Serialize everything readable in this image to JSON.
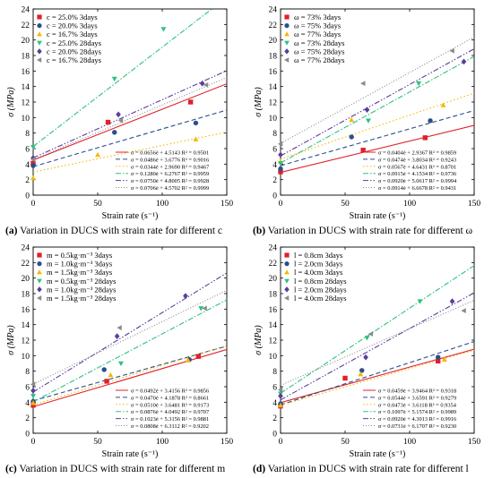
{
  "chart_data": [
    {
      "type": "scatter",
      "panel_label": "(a)",
      "caption_text": "Variation in DUCS with strain rate for different c",
      "xlabel": "Strain rate (s⁻¹)",
      "ylabel": "σ (MPa)",
      "xlim": [
        0,
        150
      ],
      "ylim": [
        0,
        24
      ],
      "x_ticks": [
        "0",
        "50",
        "100",
        "150"
      ],
      "y_ticks": [
        "0",
        "2",
        "4",
        "6",
        "8",
        "10",
        "12",
        "14",
        "16",
        "18",
        "20",
        "22",
        "24"
      ],
      "legend_position": "top-left",
      "series": [
        {
          "name": "c = 25.0%  3days",
          "color": "#e0202a",
          "marker": "square",
          "line": "solid",
          "points": [
            [
              0,
              4.1
            ],
            [
              58,
              9.4
            ],
            [
              122,
              12.0
            ]
          ],
          "fit": [
            0.0656,
            4.5143
          ],
          "fit_label": "σ = 0.0656ė + 4.5143  R² = 0.9501"
        },
        {
          "name": "c = 20.0%  3days",
          "color": "#2a4f8c",
          "marker": "circle",
          "line": "dash",
          "points": [
            [
              0,
              3.8
            ],
            [
              63,
              8.1
            ],
            [
              126,
              9.3
            ]
          ],
          "fit": [
            0.0486,
            3.6776
          ],
          "fit_label": "σ = 0.0486ė + 3.6776  R² = 0.9016"
        },
        {
          "name": "c = 16.7%  3days",
          "color": "#f5b800",
          "marker": "triangle-up",
          "line": "dot",
          "points": [
            [
              0,
              2.2
            ],
            [
              50,
              5.2
            ],
            [
              126,
              7.2
            ]
          ],
          "fit": [
            0.0344,
            2.969
          ],
          "fit_label": "σ = 0.0344ė + 2.9690  R² = 0.9467"
        },
        {
          "name": "c = 25.0%  28days",
          "color": "#2ec27e",
          "marker": "triangle-down",
          "line": "dashdot",
          "points": [
            [
              0,
              6.2
            ],
            [
              63,
              15.0
            ],
            [
              101,
              21.4
            ]
          ],
          "fit": [
            0.128,
            6.2767
          ],
          "fit_label": "σ = 0.1280ė + 6.2767  R² = 0.9959"
        },
        {
          "name": "c = 20.0%  28days",
          "color": "#5a3d9a",
          "marker": "diamond",
          "line": "dashdotdot",
          "points": [
            [
              0,
              4.8
            ],
            [
              66,
              10.4
            ],
            [
              131,
              14.4
            ]
          ],
          "fit": [
            0.075,
            4.8005
          ],
          "fit_label": "σ = 0.0750ė + 4.8005  R² = 0.9928"
        },
        {
          "name": "c = 16.7%  28days",
          "color": "#8a8a8a",
          "marker": "triangle-left",
          "line": "shortdot",
          "points": [
            [
              0,
              4.6
            ],
            [
              68,
              9.6
            ],
            [
              134,
              14.2
            ]
          ],
          "fit": [
            0.0706,
            4.5702
          ],
          "fit_label": "σ = 0.0706ė + 4.5702  R² = 0.9999"
        }
      ]
    },
    {
      "type": "scatter",
      "panel_label": "(b)",
      "caption_text": "Variation in DUCS with strain rate for different ω",
      "xlabel": "Strain rate (s⁻¹)",
      "ylabel": "σ (MPa)",
      "xlim": [
        0,
        150
      ],
      "ylim": [
        0,
        24
      ],
      "x_ticks": [
        "0",
        "50",
        "100",
        "150"
      ],
      "y_ticks": [
        "0",
        "2",
        "4",
        "6",
        "8",
        "10",
        "12",
        "14",
        "16",
        "18",
        "20",
        "22",
        "24"
      ],
      "legend_position": "top-left",
      "series": [
        {
          "name": "ω = 73%  3days",
          "color": "#e0202a",
          "marker": "square",
          "line": "solid",
          "points": [
            [
              0,
              3.0
            ],
            [
              64,
              5.8
            ],
            [
              112,
              7.4
            ]
          ],
          "fit": [
            0.0404,
            2.9367
          ],
          "fit_label": "σ = 0.0404ė + 2.9367  R² = 0.9859"
        },
        {
          "name": "ω = 75%  3days",
          "color": "#2a4f8c",
          "marker": "circle",
          "line": "dash",
          "points": [
            [
              0,
              3.4
            ],
            [
              55,
              7.5
            ],
            [
              116,
              9.6
            ]
          ],
          "fit": [
            0.0474,
            3.8034
          ],
          "fit_label": "σ = 0.0474ė + 3.8034  R² = 0.9243"
        },
        {
          "name": "ω = 77%  3days",
          "color": "#f5b800",
          "marker": "triangle-up",
          "line": "dot",
          "points": [
            [
              0,
              4.3
            ],
            [
              55,
              9.7
            ],
            [
              126,
              11.6
            ]
          ],
          "fit": [
            0.0567,
            4.6431
          ],
          "fit_label": "σ = 0.0567ė + 4.6431  R² = 0.8701"
        },
        {
          "name": "ω = 73%  28days",
          "color": "#2ec27e",
          "marker": "triangle-down",
          "line": "dashdot",
          "points": [
            [
              0,
              4.1
            ],
            [
              68,
              9.6
            ],
            [
              107,
              14.4
            ]
          ],
          "fit": [
            0.0915,
            4.1534
          ],
          "fit_label": "σ = 0.0915ė + 4.1534  R² = 0.9736"
        },
        {
          "name": "ω = 75%  28days",
          "color": "#5a3d9a",
          "marker": "diamond",
          "line": "dashdotdot",
          "points": [
            [
              0,
              5.2
            ],
            [
              67,
              11.0
            ],
            [
              142,
              17.2
            ]
          ],
          "fit": [
            0.092,
            5.0617
          ],
          "fit_label": "σ = 0.0920ė + 5.0617  R² = 0.9994"
        },
        {
          "name": "ω = 77%  28days",
          "color": "#8a8a8a",
          "marker": "triangle-left",
          "line": "shortdot",
          "points": [
            [
              0,
              6.6
            ],
            [
              64,
              14.4
            ],
            [
              133,
              18.6
            ]
          ],
          "fit": [
            0.0914,
            6.6678
          ],
          "fit_label": "σ = 0.0914ė + 6.6678  R² = 0.9431"
        }
      ]
    },
    {
      "type": "scatter",
      "panel_label": "(c)",
      "caption_text": "Variation in DUCS with strain rate for different m",
      "xlabel": "Strain rate (s⁻¹)",
      "ylabel": "σ (MPa)",
      "xlim": [
        0,
        150
      ],
      "ylim": [
        0,
        24
      ],
      "x_ticks": [
        "0",
        "50",
        "100",
        "150"
      ],
      "y_ticks": [
        "0",
        "2",
        "4",
        "6",
        "8",
        "10",
        "12",
        "14",
        "16",
        "18",
        "20",
        "22",
        "24"
      ],
      "legend_position": "top-left",
      "series": [
        {
          "name": "m = 0.5kg·m⁻³  3days",
          "color": "#e0202a",
          "marker": "square",
          "line": "solid",
          "points": [
            [
              0,
              3.6
            ],
            [
              57,
              6.7
            ],
            [
              128,
              9.9
            ]
          ],
          "fit": [
            0.0492,
            3.4156
          ],
          "fit_label": "σ = 0.0492ė + 3.4156  R² = 0.9856"
        },
        {
          "name": "m = 1.0kg·m⁻³  3days",
          "color": "#2a4f8c",
          "marker": "circle",
          "line": "dash",
          "points": [
            [
              0,
              4.1
            ],
            [
              55,
              8.2
            ],
            [
              121,
              9.5
            ]
          ],
          "fit": [
            0.047,
            4.1878
          ],
          "fit_label": "σ = 0.0470ė + 4.1878  R² = 0.8661"
        },
        {
          "name": "m = 1.5kg·m⁻³  3days",
          "color": "#f5b800",
          "marker": "triangle-up",
          "line": "dot",
          "points": [
            [
              0,
              3.9
            ],
            [
              60,
              7.5
            ],
            [
              120,
              9.4
            ]
          ],
          "fit": [
            0.051,
            3.6481
          ],
          "fit_label": "σ = 0.0510ė + 3.6481  R² = 0.9173"
        },
        {
          "name": "m = 0.5kg·m⁻³  28days",
          "color": "#2ec27e",
          "marker": "triangle-down",
          "line": "dashdot",
          "points": [
            [
              0,
              4.8
            ],
            [
              68,
              9.0
            ],
            [
              130,
              16.1
            ]
          ],
          "fit": [
            0.0876,
            4.0492
          ],
          "fit_label": "σ = 0.0876ė + 4.0492  R² = 0.9707"
        },
        {
          "name": "m = 1.0kg·m⁻³  28days",
          "color": "#5a3d9a",
          "marker": "diamond",
          "line": "dashdotdot",
          "points": [
            [
              0,
              5.5
            ],
            [
              65,
              12.5
            ],
            [
              118,
              17.7
            ]
          ],
          "fit": [
            0.1023,
            5.3156
          ],
          "fit_label": "σ = 0.1023ė + 5.3156  R² = 0.9881"
        },
        {
          "name": "m = 1.5kg·m⁻³  28days",
          "color": "#8a8a8a",
          "marker": "triangle-left",
          "line": "shortdot",
          "points": [
            [
              0,
              6.3
            ],
            [
              67,
              13.6
            ],
            [
              133,
              16.1
            ]
          ],
          "fit": [
            0.0808,
            6.3112
          ],
          "fit_label": "σ = 0.0808ė + 6.3112  R² = 0.9202"
        }
      ]
    },
    {
      "type": "scatter",
      "panel_label": "(d)",
      "caption_text": "Variation in DUCS with strain rate for different l",
      "xlabel": "Strain rate (s⁻¹)",
      "ylabel": "σ (MPa)",
      "xlim": [
        0,
        150
      ],
      "ylim": [
        0,
        24
      ],
      "x_ticks": [
        "0",
        "50",
        "100",
        "150"
      ],
      "y_ticks": [
        "0",
        "2",
        "4",
        "6",
        "8",
        "10",
        "12",
        "14",
        "16",
        "18",
        "20",
        "22",
        "24"
      ],
      "legend_position": "top-left",
      "series": [
        {
          "name": "l = 0.8cm  3days",
          "color": "#e0202a",
          "marker": "square",
          "line": "solid",
          "points": [
            [
              0,
              3.5
            ],
            [
              50,
              7.1
            ],
            [
              122,
              9.3
            ]
          ],
          "fit": [
            0.0459,
            3.9464
          ],
          "fit_label": "σ = 0.0459ė + 3.9464  R² = 0.9318"
        },
        {
          "name": "l = 2.0cm  3days",
          "color": "#2a4f8c",
          "marker": "circle",
          "line": "dash",
          "points": [
            [
              0,
              3.8
            ],
            [
              63,
              8.1
            ],
            [
              122,
              9.8
            ]
          ],
          "fit": [
            0.0544,
            3.6591
          ],
          "fit_label": "σ = 0.0544ė + 3.6591  R² = 0.9279"
        },
        {
          "name": "l = 4.0cm  3days",
          "color": "#f5b800",
          "marker": "triangle-up",
          "line": "dot",
          "points": [
            [
              0,
              3.6
            ],
            [
              62,
              7.6
            ],
            [
              127,
              9.5
            ]
          ],
          "fit": [
            0.0473,
            3.6118
          ],
          "fit_label": "σ = 0.0473ė + 3.6118  R² = 0.9354"
        },
        {
          "name": "l = 0.8cm  28days",
          "color": "#2ec27e",
          "marker": "triangle-down",
          "line": "dashdot",
          "points": [
            [
              0,
              5.1
            ],
            [
              67,
              12.3
            ],
            [
              108,
              17.0
            ]
          ],
          "fit": [
            0.1097,
            5.1574
          ],
          "fit_label": "σ = 0.1097ė + 5.1574  R² = 0.9989"
        },
        {
          "name": "l = 2.0cm  28days",
          "color": "#5a3d9a",
          "marker": "diamond",
          "line": "dashdotdot",
          "points": [
            [
              0,
              4.8
            ],
            [
              66,
              9.8
            ],
            [
              133,
              17.0
            ]
          ],
          "fit": [
            0.092,
            4.3013
          ],
          "fit_label": "σ = 0.0920ė + 4.3013  R² = 0.9916"
        },
        {
          "name": "l = 4.0cm  28days",
          "color": "#8a8a8a",
          "marker": "triangle-left",
          "line": "shortdot",
          "points": [
            [
              0,
              5.6
            ],
            [
              70,
              12.8
            ],
            [
              142,
              15.8
            ]
          ],
          "fit": [
            0.0731,
            6.1707
          ],
          "fit_label": "σ = 0.0731ė + 6.1707  R² = 0.9230"
        }
      ]
    }
  ]
}
